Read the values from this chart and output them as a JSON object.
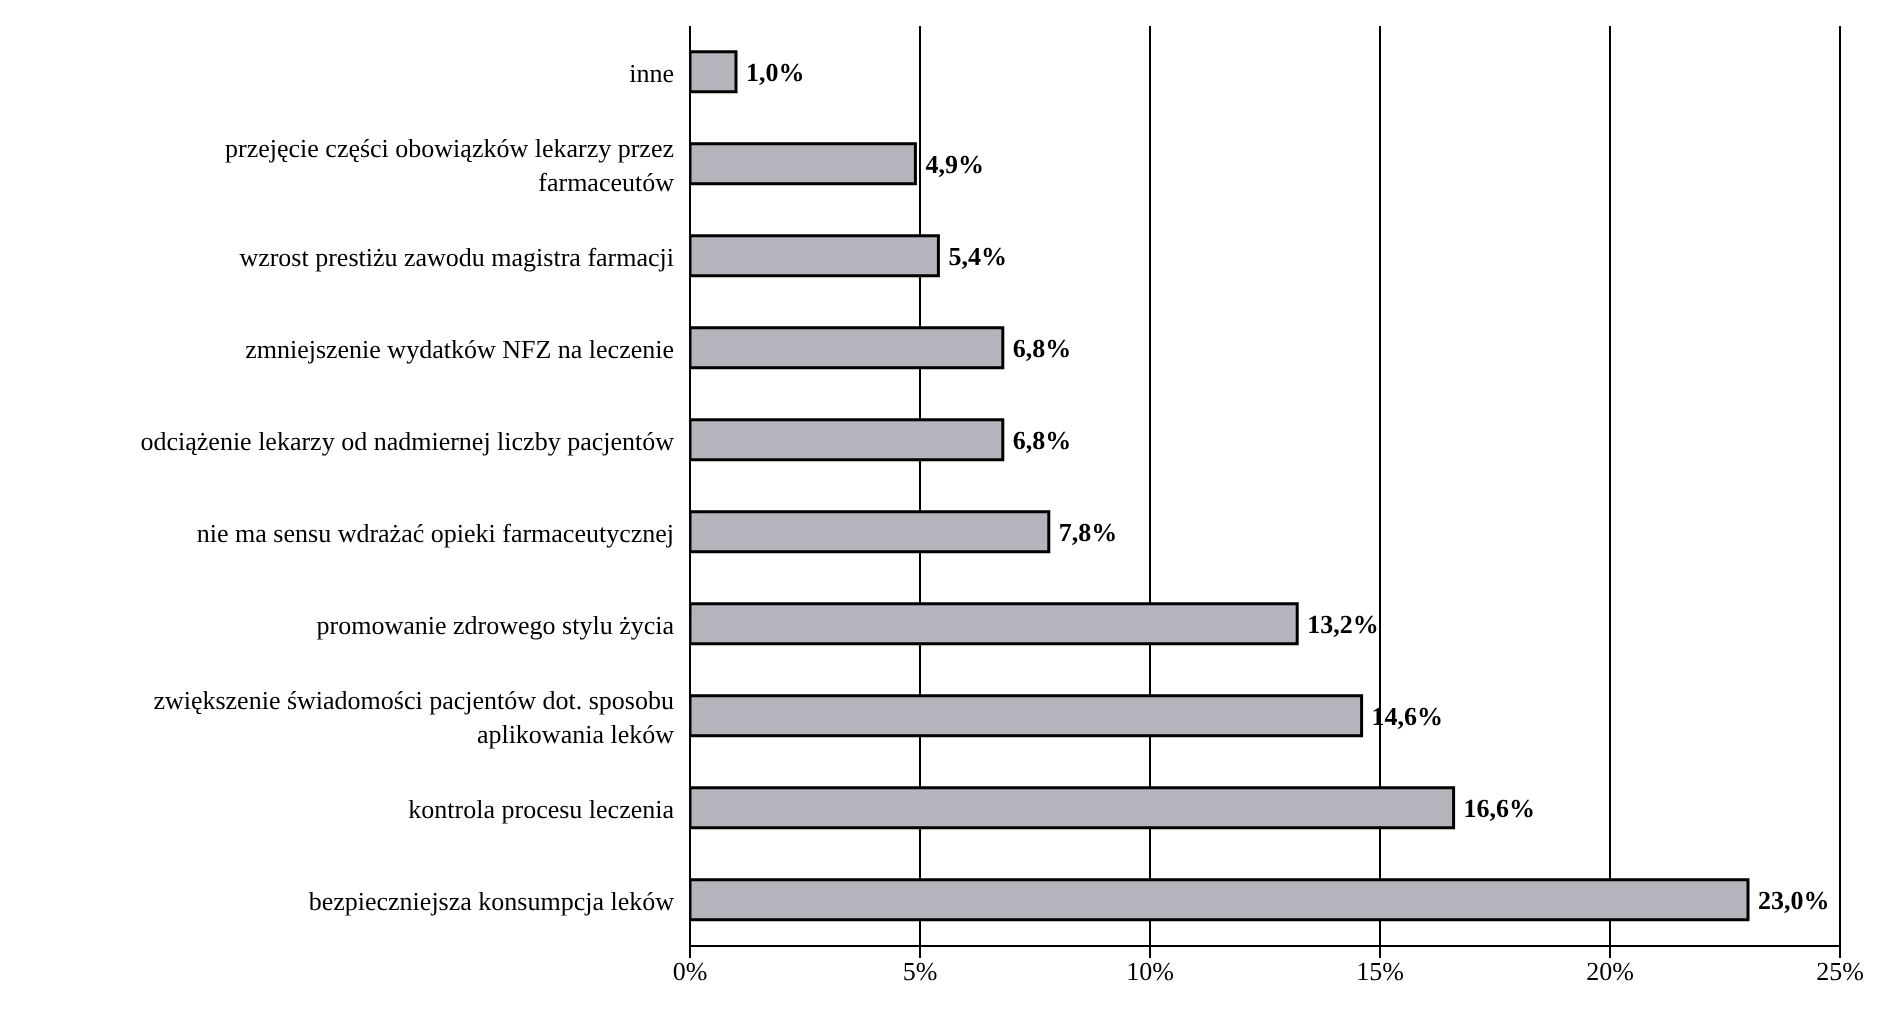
{
  "chart_data": {
    "type": "bar",
    "orientation": "horizontal",
    "categories": [
      "inne",
      "przejęcie części obowiązków lekarzy przez farmaceutów",
      "wzrost prestiżu zawodu magistra farmacji",
      "zmniejszenie wydatków NFZ na leczenie",
      "odciążenie lekarzy od nadmiernej liczby pacjentów",
      "nie ma sensu wdrażać opieki farmaceutycznej",
      "promowanie zdrowego stylu życia",
      "zwiększenie świadomości pacjentów dot. sposobu aplikowania leków",
      "kontrola procesu leczenia",
      "bezpieczniejsza konsumpcja leków"
    ],
    "values": [
      1.0,
      4.9,
      5.4,
      6.8,
      6.8,
      7.8,
      13.2,
      14.6,
      16.6,
      23.0
    ],
    "value_labels": [
      "1,0%",
      "4,9%",
      "5,4%",
      "6,8%",
      "6,8%",
      "7,8%",
      "13,2%",
      "14,6%",
      "16,6%",
      "23,0%"
    ],
    "color": "#b4b4bc",
    "xlim": [
      0,
      25
    ],
    "xticks": [
      {
        "value": 0,
        "label": "0%"
      },
      {
        "value": 5,
        "label": "5%"
      },
      {
        "value": 10,
        "label": "10%"
      },
      {
        "value": 15,
        "label": "15%"
      },
      {
        "value": 20,
        "label": "20%"
      },
      {
        "value": 25,
        "label": "25%"
      }
    ],
    "grid": "x"
  }
}
